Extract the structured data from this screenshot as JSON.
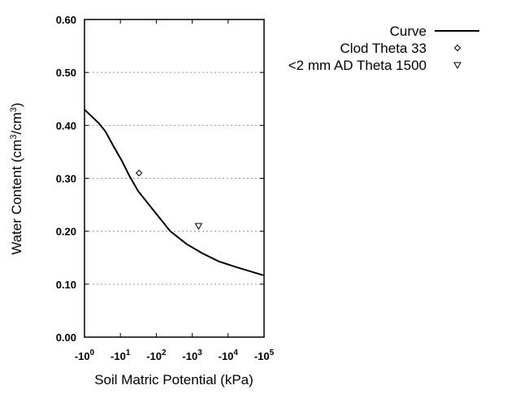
{
  "chart_data": {
    "type": "line",
    "title": "",
    "xlabel": "Soil Matric Potential (kPa)",
    "ylabel_parts": [
      "Water Content (cm",
      "3",
      "/cm",
      "3",
      ")"
    ],
    "x_scale": "log (negative potentials)",
    "xlim": [
      -1,
      -100000
    ],
    "ylim": [
      0,
      0.6
    ],
    "grid": "horizontal dotted",
    "x_ticks": [
      {
        "base": "-10",
        "exp": "0",
        "value": -1
      },
      {
        "base": "-10",
        "exp": "1",
        "value": -10
      },
      {
        "base": "-10",
        "exp": "2",
        "value": -100
      },
      {
        "base": "-10",
        "exp": "3",
        "value": -1000
      },
      {
        "base": "-10",
        "exp": "4",
        "value": -10000
      },
      {
        "base": "-10",
        "exp": "5",
        "value": -100000
      }
    ],
    "y_ticks": [
      "0.00",
      "0.10",
      "0.20",
      "0.30",
      "0.40",
      "0.50",
      "0.60"
    ],
    "legend_position": "top-right, outside plot",
    "series": [
      {
        "name": "Curve",
        "kind": "line",
        "color": "#000000",
        "x": [
          -1,
          -2.5,
          -3.8,
          -6.5,
          -11,
          -18,
          -31,
          -87,
          -245,
          -690,
          -1950,
          -5500,
          -15500,
          -95000
        ],
        "y": [
          0.43,
          0.404,
          0.389,
          0.36,
          0.333,
          0.304,
          0.276,
          0.238,
          0.2,
          0.176,
          0.158,
          0.143,
          0.133,
          0.117
        ]
      },
      {
        "name": "Clod Theta 33",
        "kind": "point",
        "marker": "diamond",
        "x": [
          -33
        ],
        "y": [
          0.31
        ]
      },
      {
        "name": "<2 mm AD Theta 1500",
        "kind": "point",
        "marker": "triangle-down",
        "x": [
          -1500
        ],
        "y": [
          0.21
        ]
      }
    ]
  }
}
